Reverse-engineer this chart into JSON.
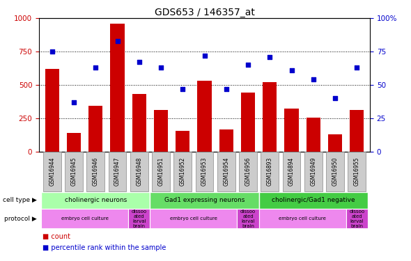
{
  "title": "GDS653 / 146357_at",
  "samples": [
    "GSM16944",
    "GSM16945",
    "GSM16946",
    "GSM16947",
    "GSM16948",
    "GSM16951",
    "GSM16952",
    "GSM16953",
    "GSM16954",
    "GSM16956",
    "GSM16893",
    "GSM16894",
    "GSM16949",
    "GSM16950",
    "GSM16955"
  ],
  "counts": [
    620,
    140,
    340,
    960,
    430,
    310,
    155,
    530,
    165,
    440,
    520,
    320,
    255,
    130,
    310
  ],
  "percentiles": [
    75,
    37,
    63,
    83,
    67,
    63,
    47,
    72,
    47,
    65,
    71,
    61,
    54,
    40,
    63
  ],
  "bar_color": "#cc0000",
  "dot_color": "#0000cc",
  "ylim_left": [
    0,
    1000
  ],
  "ylim_right": [
    0,
    100
  ],
  "yticks_left": [
    0,
    250,
    500,
    750,
    1000
  ],
  "yticks_right": [
    0,
    25,
    50,
    75,
    100
  ],
  "cell_type_groups": [
    {
      "label": "cholinergic neurons",
      "start": 0,
      "end": 4,
      "color": "#aaffaa"
    },
    {
      "label": "Gad1 expressing neurons",
      "start": 5,
      "end": 9,
      "color": "#66dd66"
    },
    {
      "label": "cholinergic/Gad1 negative",
      "start": 10,
      "end": 14,
      "color": "#44cc44"
    }
  ],
  "protocol_groups": [
    {
      "label": "embryo cell culture",
      "start": 0,
      "end": 3,
      "color": "#ee88ee"
    },
    {
      "label": "dissoo\nated\nlarval\nbrain",
      "start": 4,
      "end": 4,
      "color": "#cc44cc"
    },
    {
      "label": "embryo cell culture",
      "start": 5,
      "end": 8,
      "color": "#ee88ee"
    },
    {
      "label": "dissoo\nated\nlarval\nbrain",
      "start": 9,
      "end": 9,
      "color": "#cc44cc"
    },
    {
      "label": "embryo cell culture",
      "start": 10,
      "end": 13,
      "color": "#ee88ee"
    },
    {
      "label": "dissoo\nated\nlarval\nbrain",
      "start": 14,
      "end": 14,
      "color": "#cc44cc"
    }
  ],
  "grid_color": "black",
  "grid_style": "dotted",
  "tick_box_color": "#cccccc",
  "tick_box_edge": "#888888"
}
